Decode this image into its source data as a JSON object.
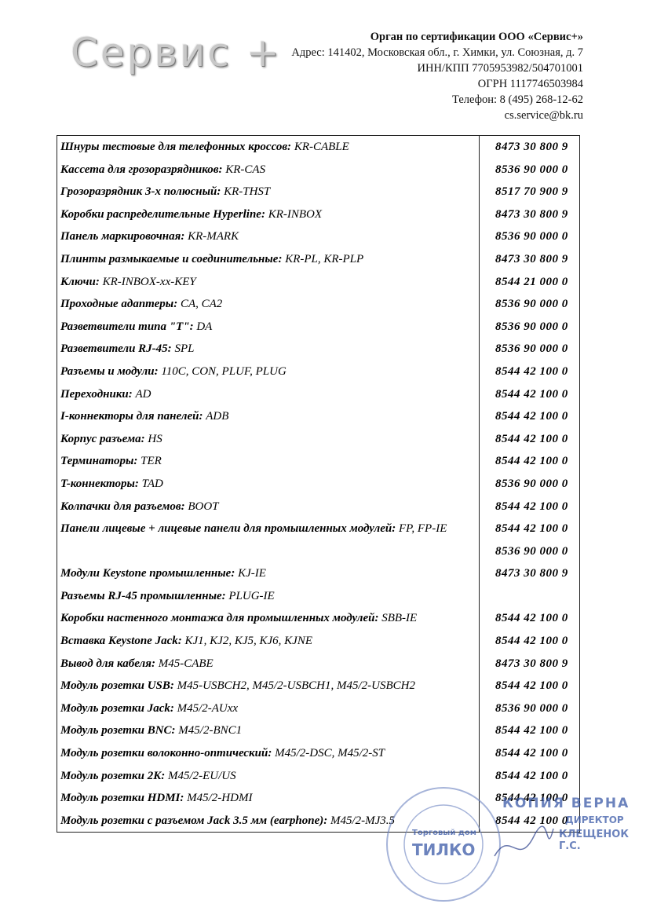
{
  "header": {
    "logo": "Сервис +",
    "org": "Орган по сертификации ООО «Сервис+»",
    "address": "Адрес: 141402, Московская обл., г. Химки, ул. Союзная, д. 7",
    "inn": "ИНН/КПП 7705953982/504701001",
    "ogrn": "ОГРН 1117746503984",
    "phone": "Телефон: 8 (495) 268-12-62",
    "email": "cs.service@bk.ru"
  },
  "table": {
    "rows": [
      {
        "label": "Шнуры тестовые для телефонных кроссов:",
        "value": "KR-CABLE",
        "codes": [
          "8473 30 800 9"
        ]
      },
      {
        "label": "Кассета для грозоразрядников:",
        "value": "KR-CAS",
        "codes": [
          "8536 90 000 0"
        ]
      },
      {
        "label": "Грозоразрядник 3-х полюсный:",
        "value": "KR-THST",
        "codes": [
          "8517 70 900 9"
        ]
      },
      {
        "label": "Коробки распределительные Hyperline:",
        "value": "KR-INBOX",
        "codes": [
          "8473 30 800 9"
        ]
      },
      {
        "label": "Панель маркировочная:",
        "value": "KR-MARK",
        "codes": [
          "8536 90 000 0"
        ]
      },
      {
        "label": "Плинты размыкаемые и соединительные:",
        "value": "KR-PL, KR-PLP",
        "codes": [
          "8473 30 800 9"
        ]
      },
      {
        "label": "Ключи:",
        "value": "KR-INBOX-xx-KEY",
        "codes": [
          "8544 21 000 0"
        ]
      },
      {
        "label": "Проходные адаптеры:",
        "value": "CA, CA2",
        "codes": [
          "8536 90 000 0"
        ]
      },
      {
        "label": "Разветвители типа \"T\":",
        "value": "DA",
        "codes": [
          "8536 90 000 0"
        ]
      },
      {
        "label": "Разветвители RJ-45:",
        "value": "SPL",
        "codes": [
          "8536 90 000 0"
        ]
      },
      {
        "label": "Разъемы и модули:",
        "value": "110C, CON, PLUF, PLUG",
        "codes": [
          "8544 42 100 0"
        ]
      },
      {
        "label": "Переходники:",
        "value": "AD",
        "codes": [
          "8544 42 100 0"
        ]
      },
      {
        "label": "I-коннекторы для панелей:",
        "value": "ADB",
        "codes": [
          "8544 42 100 0"
        ]
      },
      {
        "label": "Корпус разъема:",
        "value": "HS",
        "codes": [
          "8544 42 100 0"
        ]
      },
      {
        "label": "Терминаторы:",
        "value": "TER",
        "codes": [
          "8544 42 100 0"
        ]
      },
      {
        "label": "T-коннекторы:",
        "value": "TAD",
        "codes": [
          "8536 90 000 0"
        ]
      },
      {
        "label": "Колпачки для разъемов:",
        "value": "BOOT",
        "codes": [
          "8544 42 100 0"
        ]
      },
      {
        "label": "Панели лицевые + лицевые панели для промышленных модулей:",
        "value": "FP, FP-IE",
        "codes": [
          "8544 42 100 0",
          "8536 90 000 0"
        ]
      },
      {
        "label": "Модули Keystone промышленные:",
        "value": "KJ-IE",
        "codes": [
          "8473 30 800 9"
        ]
      },
      {
        "label": "Разъемы RJ-45 промышленные:",
        "value": "PLUG-IE",
        "codes": []
      },
      {
        "label": "Коробки настенного монтажа для промышленных модулей:",
        "value": "SBB-IE",
        "codes": [
          "8544 42 100 0"
        ]
      },
      {
        "label": "Вставка Keystone Jack:",
        "value": "KJ1, KJ2, KJ5, KJ6, KJNE",
        "codes": [
          "8544 42 100 0"
        ]
      },
      {
        "label": "Вывод для кабеля:",
        "value": "M45-CABE",
        "codes": [
          "8473 30 800 9"
        ]
      },
      {
        "label": "Модуль розетки USB:",
        "value": "M45-USBCH2, M45/2-USBCH1, M45/2-USBCH2",
        "codes": [
          "8544 42 100 0"
        ]
      },
      {
        "label": "Модуль розетки Jack:",
        "value": "M45/2-AUxx",
        "codes": [
          "8536 90 000 0"
        ]
      },
      {
        "label": "Модуль розетки BNC:",
        "value": "M45/2-BNC1",
        "codes": [
          "8544 42 100 0"
        ]
      },
      {
        "label": "Модуль розетки волоконно-оптический:",
        "value": "M45/2-DSC, M45/2-ST",
        "codes": [
          "8544 42 100 0"
        ]
      },
      {
        "label": "Модуль розетки 2K:",
        "value": "M45/2-EU/US",
        "codes": [
          "8544 42 100 0"
        ]
      },
      {
        "label": "Модуль розетки HDMI:",
        "value": "M45/2-HDMI",
        "codes": [
          "8544 42 100 0"
        ]
      },
      {
        "label": "Модуль розетки с разъемом Jack 3.5 мм (earphone):",
        "value": "M45/2-MJ3.5",
        "codes": [
          "8544 42 100 0"
        ]
      }
    ]
  },
  "stamp": {
    "copy": "КОПИЯ ВЕРНА",
    "position": "ДИРЕКТОР",
    "person": "КЛЕЩЕНОК Г.С.",
    "seal_line": "Торговый дом",
    "seal_name": "ТИЛКО"
  }
}
